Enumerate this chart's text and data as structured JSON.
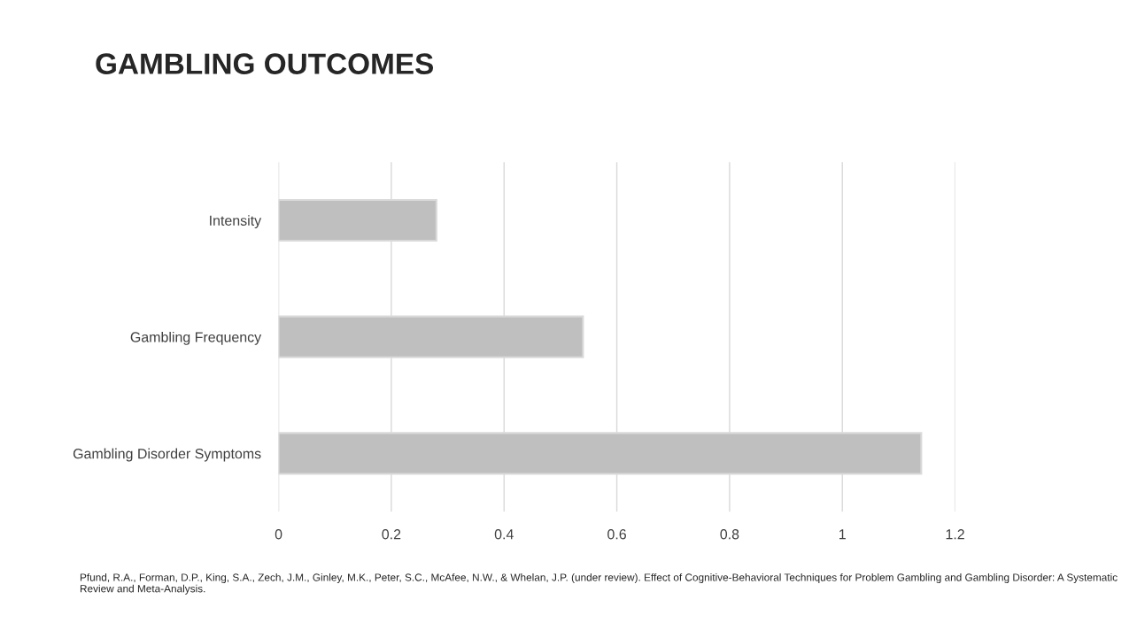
{
  "chart_data": {
    "type": "bar",
    "title": "GAMBLING OUTCOMES",
    "orientation": "horizontal",
    "categories": [
      "Intensity",
      "Gambling Frequency",
      "Gambling Disorder Symptoms"
    ],
    "values": [
      0.28,
      0.54,
      1.14
    ],
    "color": "#bfbfbf",
    "xlim": [
      0,
      1.2
    ],
    "xticks": [
      0,
      0.2,
      0.4,
      0.6,
      0.8,
      1,
      1.2
    ],
    "grid": "x",
    "legend": false,
    "annotations": [
      "Pfund, R.A., Forman, D.P., King, S.A., Zech, J.M., Ginley, M.K., Peter, S.C., McAfee, N.W., & Whelan, J.P. (under review). Effect of Cognitive-Behavioral Techniques for Problem Gambling and Gambling Disorder: A Systematic Review and Meta-Analysis."
    ]
  }
}
